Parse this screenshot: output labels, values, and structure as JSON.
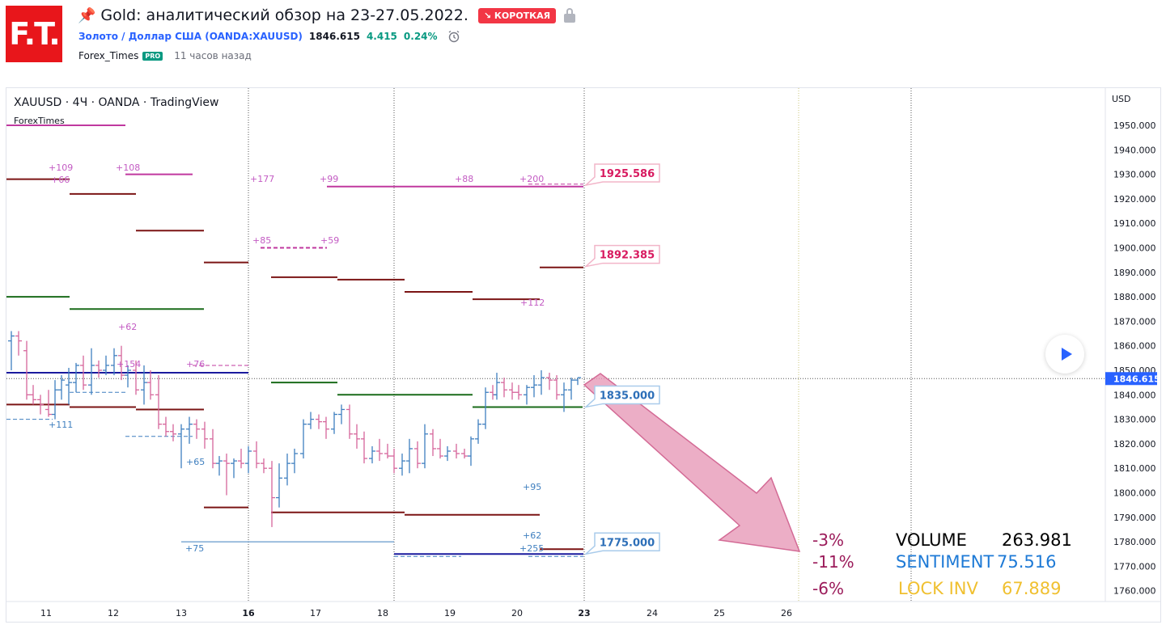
{
  "header": {
    "logo_text": "F.T.",
    "title": "Gold: аналитический обзор на 23-27.05.2022.",
    "badge": "↘ КОРОТКАЯ",
    "symbol_name": "Золото / Доллар США (OANDA:XAUUSD)",
    "price": "1846.615",
    "change": "4.415",
    "change_pct": "0.24%",
    "author": "Forex_Times",
    "author_badge": "PRO",
    "time_ago": "11 часов назад"
  },
  "chart_data": {
    "type": "candlestick",
    "legend_title": "XAUUSD · 4Ч · OANDA · TradingView",
    "watermark": "ForexTimes",
    "currency": "USD",
    "y_ticks": [
      "1950.000",
      "1940.000",
      "1930.000",
      "1920.000",
      "1910.000",
      "1900.000",
      "1890.000",
      "1880.000",
      "1870.000",
      "1860.000",
      "1850.000",
      "1840.000",
      "1830.000",
      "1820.000",
      "1810.000",
      "1800.000",
      "1790.000",
      "1780.000",
      "1770.000",
      "1760.000"
    ],
    "ylim": [
      1756,
      1961
    ],
    "x_ticks": [
      "11",
      "12",
      "13",
      "16",
      "17",
      "18",
      "19",
      "20",
      "23",
      "24",
      "25",
      "26"
    ],
    "x_bold_ticks": [
      "16",
      "23"
    ],
    "last_price_label": "1846.615",
    "last_price": 1846.615,
    "price_callouts": [
      {
        "label": "1925.586",
        "value": 1925.586,
        "color": "#d81b60"
      },
      {
        "label": "1892.385",
        "value": 1892.385,
        "color": "#d81b60"
      },
      {
        "label": "1835.000",
        "value": 1835.0,
        "color": "#2d6fb8"
      },
      {
        "label": "1775.000",
        "value": 1775.0,
        "color": "#2d6fb8"
      }
    ],
    "level_annotations": [
      {
        "text": "+109",
        "color": "#c35bc3"
      },
      {
        "text": "+66",
        "color": "#c35bc3"
      },
      {
        "text": "+108",
        "color": "#c35bc3"
      },
      {
        "text": "+177",
        "color": "#c35bc3"
      },
      {
        "text": "+99",
        "color": "#c35bc3"
      },
      {
        "text": "+88",
        "color": "#c35bc3"
      },
      {
        "text": "+200",
        "color": "#c35bc3"
      },
      {
        "text": "+85",
        "color": "#c35bc3"
      },
      {
        "text": "+59",
        "color": "#c35bc3"
      },
      {
        "text": "+112",
        "color": "#c35bc3"
      },
      {
        "text": "+62",
        "color": "#c35bc3"
      },
      {
        "text": "+154",
        "color": "#c35bc3"
      },
      {
        "text": "+76",
        "color": "#c35bc3"
      },
      {
        "text": "+111",
        "color": "#3f7fbf"
      },
      {
        "text": "+65",
        "color": "#3f7fbf"
      },
      {
        "text": "+95",
        "color": "#3f7fbf"
      },
      {
        "text": "+62",
        "color": "#3f7fbf"
      },
      {
        "text": "+255",
        "color": "#3f7fbf"
      },
      {
        "text": "+75",
        "color": "#3f7fbf"
      }
    ],
    "stats": [
      {
        "pct": "-3%",
        "name": "VOLUME",
        "value": "263.981",
        "color": "#000000"
      },
      {
        "pct": "-11%",
        "name": "SENTIMENT",
        "value": "75.516",
        "color": "#1e7ad6"
      },
      {
        "pct": "-6%",
        "name": "LOCK INV",
        "value": "67.889",
        "color": "#f0c030"
      }
    ],
    "stats_pct_color": "#9b1b5a",
    "colors": {
      "up_candle": "#3f7fbf",
      "down_candle": "#d6659b",
      "resistance": "#7b1414",
      "support_green": "#1a6b1a",
      "magenta_level": "#c0389f",
      "navy_level": "#1a1a9e",
      "arrow_fill": "#e79ab8",
      "arrow_stroke": "#d36a95"
    }
  },
  "controls": {
    "play_button": "play"
  }
}
